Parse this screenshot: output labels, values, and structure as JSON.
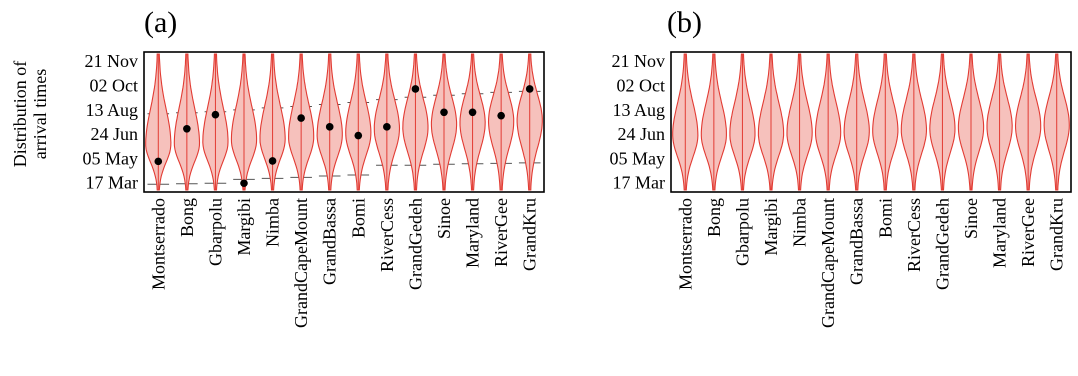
{
  "chart_data": [
    {
      "panel_label": "(a)",
      "type": "violin",
      "ylabel_lines": [
        "Distribution of",
        "arrival times"
      ],
      "y_tick_labels": [
        "21 Nov",
        "02 Oct",
        "13 Aug",
        "24 Jun",
        "05 May",
        "17 Mar"
      ],
      "y_tick_values": [
        "2014-11-21",
        "2014-10-02",
        "2014-08-13",
        "2014-06-24",
        "2014-05-05",
        "2014-03-17"
      ],
      "ylim": [
        "2014-02-25",
        "2014-12-10"
      ],
      "categories": [
        "Montserrado",
        "Bong",
        "Gbarpolu",
        "Margibi",
        "Nimba",
        "GrandCapeMount",
        "GrandBassa",
        "Bomi",
        "RiverCess",
        "GrandGedeh",
        "Sinoe",
        "Maryland",
        "RiverGee",
        "GrandKru"
      ],
      "series": [
        {
          "values_median": [
            "2014-06-03",
            "2014-06-05",
            "2014-06-08",
            "2014-06-12",
            "2014-06-14",
            "2014-06-18",
            "2014-06-22",
            "2014-06-26",
            "2014-07-05",
            "2014-07-08",
            "2014-07-14",
            "2014-07-17",
            "2014-07-20",
            "2014-07-22"
          ],
          "values_upper": [
            "2014-08-05",
            "2014-08-07",
            "2014-08-09",
            "2014-08-13",
            "2014-08-17",
            "2014-08-20",
            "2014-08-24",
            "2014-08-28",
            "2014-09-03",
            "2014-09-08",
            "2014-09-12",
            "2014-09-15",
            "2014-09-18",
            "2014-09-20"
          ],
          "values_lower": [
            "2014-03-13",
            "2014-03-14",
            "2014-03-15",
            "2014-03-23",
            "2014-03-25",
            "2014-03-27",
            "2014-03-30",
            "2014-04-01",
            "2014-04-21",
            "2014-04-21",
            "2014-04-23",
            "2014-04-24",
            "2014-04-25",
            "2014-04-26"
          ]
        },
        {
          "values_points": [
            "2014-04-29",
            "2014-07-05",
            "2014-08-03",
            "2014-03-15",
            "2014-04-30",
            "2014-07-27",
            "2014-07-09",
            "2014-06-21",
            "2014-07-09",
            "2014-09-25",
            "2014-08-08",
            "2014-08-08",
            "2014-08-01",
            "2014-09-25"
          ]
        }
      ],
      "colors": {
        "violin_fill": "#f6c1bc",
        "violin_stroke": "#e23b33",
        "marker": "#000000",
        "dash": "#555555"
      }
    },
    {
      "panel_label": "(b)",
      "type": "violin",
      "y_tick_labels": [
        "21 Nov",
        "02 Oct",
        "13 Aug",
        "24 Jun",
        "05 May",
        "17 Mar"
      ],
      "y_tick_values": [
        "2014-11-21",
        "2014-10-02",
        "2014-08-13",
        "2014-06-24",
        "2014-05-05",
        "2014-03-17"
      ],
      "ylim": [
        "2014-02-25",
        "2014-12-10"
      ],
      "categories": [
        "Montserrado",
        "Bong",
        "Gbarpolu",
        "Margibi",
        "Nimba",
        "GrandCapeMount",
        "GrandBassa",
        "Bomi",
        "RiverCess",
        "GrandGedeh",
        "Sinoe",
        "Maryland",
        "RiverGee",
        "GrandKru"
      ],
      "series": [
        {
          "values_median": [
            "2014-06-22",
            "2014-06-23",
            "2014-06-24",
            "2014-06-25",
            "2014-06-26",
            "2014-06-27",
            "2014-06-29",
            "2014-07-01",
            "2014-07-03",
            "2014-07-05",
            "2014-07-07",
            "2014-07-09",
            "2014-07-11",
            "2014-07-13"
          ]
        }
      ],
      "colors": {
        "violin_fill": "#f6c1bc",
        "violin_stroke": "#e23b33"
      }
    }
  ]
}
